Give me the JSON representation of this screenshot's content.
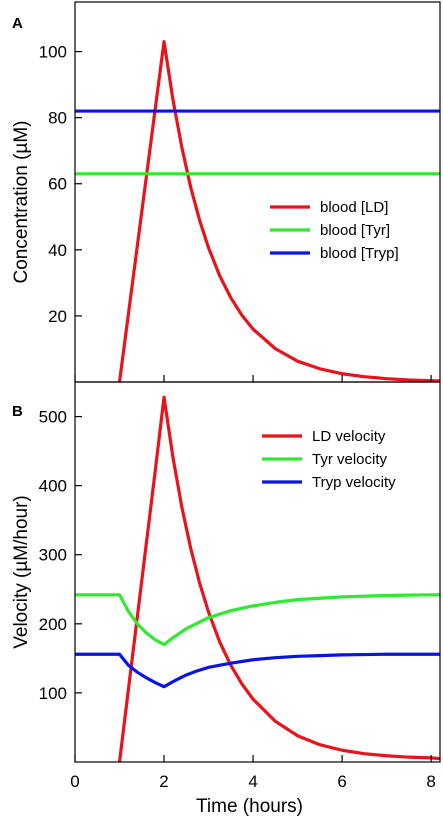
{
  "chart_data": [
    {
      "panel": "A",
      "type": "line",
      "ylabel": "Concentration (µM)",
      "xlim": [
        0,
        8.2
      ],
      "ylim": [
        0,
        115
      ],
      "yticks": [
        20,
        40,
        60,
        80,
        100
      ],
      "legend_position": "right",
      "series": [
        {
          "name": "blood [LD]",
          "color": "#e8131b",
          "x": [
            1,
            1.2,
            1.4,
            1.6,
            1.8,
            2,
            2.2,
            2.4,
            2.6,
            2.8,
            3,
            3.25,
            3.5,
            3.75,
            4,
            4.5,
            5,
            5.5,
            6,
            6.5,
            7,
            7.5,
            8,
            8.2
          ],
          "y": [
            0,
            20.6,
            41.2,
            61.8,
            82.4,
            103,
            85.5,
            71.0,
            58.9,
            48.9,
            40.6,
            32.2,
            25.5,
            20.2,
            16.0,
            10.1,
            6.3,
            4.0,
            2.5,
            1.6,
            1.0,
            0.6,
            0.4,
            0.3
          ]
        },
        {
          "name": "blood [Tyr]",
          "color": "#2fea2f",
          "x": [
            0,
            8.2
          ],
          "y": [
            63,
            63
          ]
        },
        {
          "name": "blood [Tryp]",
          "color": "#0a14e6",
          "x": [
            0,
            8.2
          ],
          "y": [
            82,
            82
          ]
        }
      ]
    },
    {
      "panel": "B",
      "type": "line",
      "xlabel": "Time (hours)",
      "ylabel": "Velocity (µM/hour)",
      "xlim": [
        0,
        8.2
      ],
      "ylim": [
        0,
        550
      ],
      "xticks": [
        0,
        2,
        4,
        6,
        8
      ],
      "yticks": [
        100,
        200,
        300,
        400,
        500
      ],
      "legend_position": "top-right",
      "series": [
        {
          "name": "LD velocity",
          "color": "#e8131b",
          "x": [
            1,
            1.2,
            1.4,
            1.6,
            1.8,
            2,
            2.2,
            2.4,
            2.6,
            2.8,
            3,
            3.25,
            3.5,
            3.75,
            4,
            4.5,
            5,
            5.5,
            6,
            6.5,
            7,
            7.5,
            8,
            8.2
          ],
          "y": [
            0,
            105,
            210,
            315,
            420,
            528,
            441,
            369,
            309,
            259,
            217,
            174,
            140,
            113,
            91,
            59,
            38,
            25,
            17,
            12,
            9,
            7,
            6,
            5
          ]
        },
        {
          "name": "Tyr velocity",
          "color": "#2fea2f",
          "x": [
            0,
            1,
            1.1,
            1.2,
            1.4,
            1.6,
            1.8,
            2,
            2.25,
            2.5,
            2.75,
            3,
            3.5,
            4,
            4.5,
            5,
            5.5,
            6,
            6.5,
            7,
            7.5,
            8,
            8.2
          ],
          "y": [
            242,
            242,
            230,
            218,
            200,
            187,
            177,
            170,
            182,
            193,
            201,
            209,
            219,
            226,
            231,
            235,
            237,
            239,
            240,
            241,
            241.5,
            242,
            242
          ]
        },
        {
          "name": "Tryp velocity",
          "color": "#0a14e6",
          "x": [
            0,
            1,
            1.1,
            1.2,
            1.4,
            1.6,
            1.8,
            2,
            2.25,
            2.5,
            2.75,
            3,
            3.5,
            4,
            4.5,
            5,
            5.5,
            6,
            6.5,
            7,
            7.5,
            8,
            8.2
          ],
          "y": [
            156,
            156,
            148,
            140,
            130,
            122,
            115,
            109,
            118,
            126,
            132,
            137,
            143,
            148,
            151,
            153,
            154,
            155,
            155.5,
            156,
            156,
            156,
            156
          ]
        }
      ]
    }
  ]
}
